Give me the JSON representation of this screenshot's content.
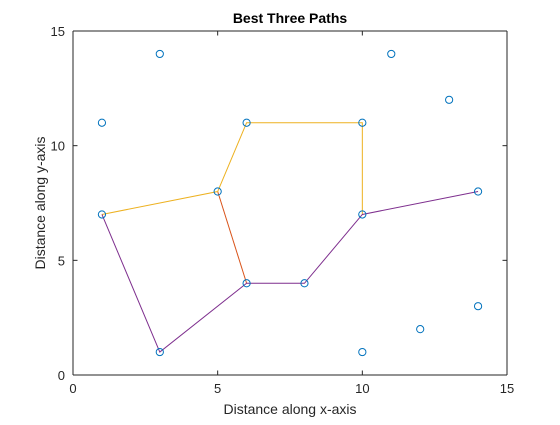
{
  "chart_data": {
    "type": "line",
    "title": "Best Three Paths",
    "xlabel": "Distance along x-axis",
    "ylabel": "Distance along y-axis",
    "xlim": [
      0,
      15
    ],
    "ylim": [
      0,
      15
    ],
    "xticks": [
      0,
      5,
      10,
      15
    ],
    "yticks": [
      0,
      5,
      10,
      15
    ],
    "grid": false,
    "legend": "none",
    "points": {
      "color": "#0072BD",
      "marker": "circle",
      "x": [
        3,
        11,
        1,
        13,
        6,
        10,
        5,
        1,
        10,
        14,
        6,
        8,
        3,
        10,
        12,
        14
      ],
      "y": [
        14,
        14,
        11,
        12,
        11,
        11,
        8,
        7,
        7,
        8,
        4,
        4,
        1,
        1,
        2,
        3
      ]
    },
    "series": [
      {
        "color": "#D95319",
        "x": [
          5,
          6
        ],
        "y": [
          8,
          4
        ]
      },
      {
        "color": "#EDB120",
        "x": [
          1,
          5,
          6,
          10,
          10
        ],
        "y": [
          7,
          8,
          11,
          11,
          7
        ]
      },
      {
        "color": "#7E2F8E",
        "x": [
          1,
          3,
          6,
          8,
          10,
          14
        ],
        "y": [
          7,
          1,
          4,
          4,
          7,
          8
        ]
      }
    ]
  }
}
